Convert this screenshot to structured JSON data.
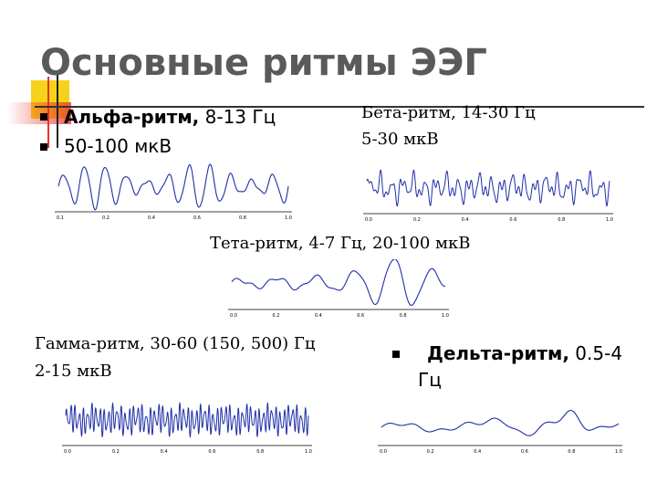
{
  "title": "Основные ритмы ЭЭГ",
  "alpha": {
    "name": "Альфа-ритм,",
    "freq": " 8-13 Гц",
    "amp": "50-100 мкВ",
    "ticks": [
      "0.1",
      "0.2",
      "0.4",
      "0.6",
      "0.8",
      "1.0"
    ]
  },
  "beta": {
    "line1": "Бета-ритм, 14-30 Гц",
    "line2": "5-30 мкВ",
    "ticks": [
      "0.0",
      "0.2",
      "0.4",
      "0.6",
      "0.8",
      "1.0"
    ]
  },
  "theta": {
    "line1": "Тета-ритм, 4-7 Гц, 20-100 мкВ",
    "ticks": [
      "0.0",
      "0.2",
      "0.4",
      "0.6",
      "0.8",
      "1.0"
    ]
  },
  "gamma": {
    "line1": "Гамма-ритм, 30-60 (150, 500) Гц",
    "line2": "2-15 мкВ",
    "ticks": [
      "0.0",
      "0.2",
      "0.4",
      "0.6",
      "0.8",
      "1.0"
    ]
  },
  "delta": {
    "name": "Дельта-ритм,",
    "freq": " 0.5-4",
    "freq2": "Гц",
    "ticks": [
      "0.0",
      "0.2",
      "0.4",
      "0.6",
      "0.8",
      "1.0"
    ]
  },
  "colors": {
    "wave": "#1f2fa8",
    "accent_yellow": "#f7d21a",
    "accent_red": "#e8322b",
    "title": "#5a5a5a"
  }
}
